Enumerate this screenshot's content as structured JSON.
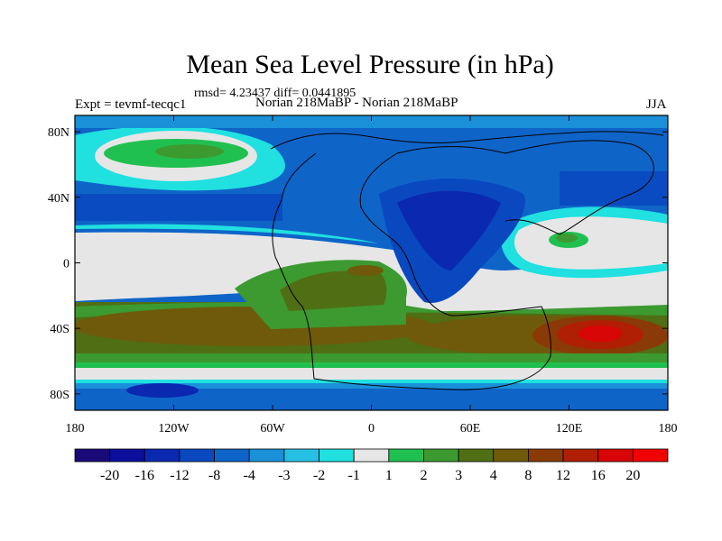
{
  "chart_data": {
    "type": "heatmap",
    "title": "Mean Sea Level Pressure (in hPa)",
    "stats": "rmsd= 4.23437 diff= 0.0441895",
    "left_label": "Expt = tevmf-tecqc1",
    "center_label": "Norian 218MaBP - Norian 218MaBP",
    "right_label": "JJA",
    "x_ticks": [
      "180",
      "120W",
      "60W",
      "0",
      "60E",
      "120E",
      "180"
    ],
    "y_ticks": [
      "80N",
      "40N",
      "0",
      "40S",
      "80S"
    ],
    "xlim": [
      -180,
      180
    ],
    "ylim": [
      -90,
      90
    ],
    "colorbar": {
      "labels": [
        "-20",
        "-16",
        "-12",
        "-8",
        "-4",
        "-3",
        "-2",
        "-1",
        "1",
        "2",
        "3",
        "4",
        "8",
        "12",
        "16",
        "20"
      ],
      "colors": [
        "#1a0a78",
        "#0c0f9c",
        "#0a28b0",
        "#0a48c0",
        "#0f64c8",
        "#1a90d8",
        "#28bfe4",
        "#20e0e0",
        "#e6e6e6",
        "#20c050",
        "#3c9a30",
        "#506e14",
        "#6e5a0a",
        "#8a3a06",
        "#b01e04",
        "#d80606",
        "#f00000"
      ]
    }
  }
}
